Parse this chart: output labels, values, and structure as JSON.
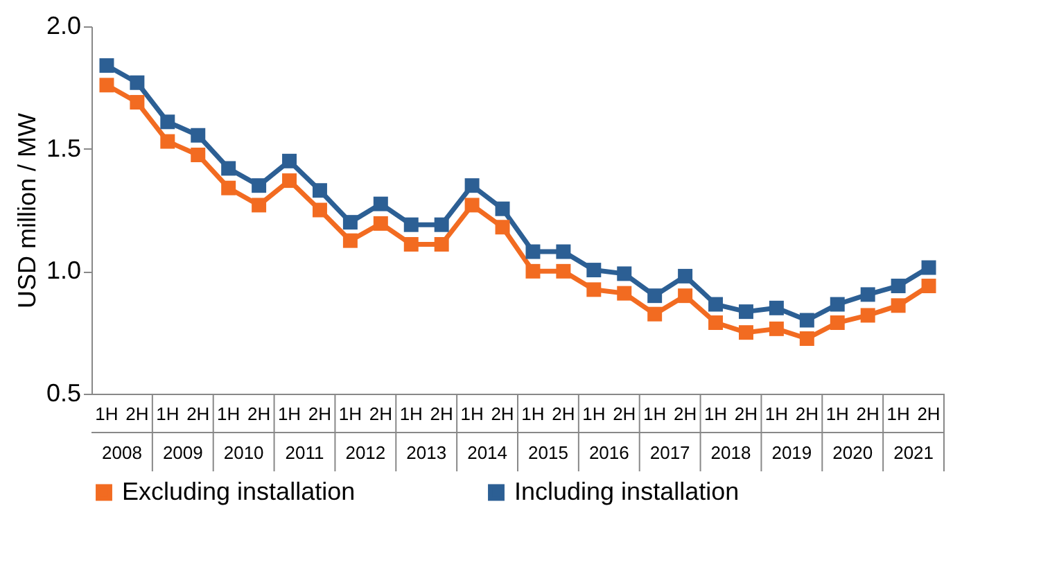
{
  "chart_data": {
    "type": "line",
    "ylabel": "USD million / MW",
    "categories": [
      "1H",
      "2H",
      "1H",
      "2H",
      "1H",
      "2H",
      "1H",
      "2H",
      "1H",
      "2H",
      "1H",
      "2H",
      "1H",
      "2H",
      "1H",
      "2H",
      "1H",
      "2H",
      "1H",
      "2H",
      "1H",
      "2H",
      "1H",
      "2H",
      "1H",
      "2H",
      "1H",
      "2H"
    ],
    "annotations": [
      "2008",
      "2009",
      "2010",
      "2011",
      "2012",
      "2013",
      "2014",
      "2015",
      "2016",
      "2017",
      "2018",
      "2019",
      "2020",
      "2021"
    ],
    "series": [
      {
        "name": "Excluding installation",
        "color": "#f26b21",
        "values": [
          1.76,
          1.69,
          1.53,
          1.475,
          1.34,
          1.27,
          1.37,
          1.25,
          1.125,
          1.195,
          1.11,
          1.11,
          1.27,
          1.18,
          1.0,
          1.0,
          0.925,
          0.91,
          0.825,
          0.9,
          0.79,
          0.75,
          0.765,
          0.725,
          0.79,
          0.82,
          0.86,
          0.94
        ]
      },
      {
        "name": "Including installation",
        "color": "#2c5f94",
        "values": [
          1.84,
          1.77,
          1.61,
          1.555,
          1.42,
          1.35,
          1.45,
          1.33,
          1.2,
          1.275,
          1.19,
          1.19,
          1.35,
          1.255,
          1.08,
          1.08,
          1.005,
          0.99,
          0.9,
          0.98,
          0.865,
          0.835,
          0.85,
          0.8,
          0.865,
          0.905,
          0.94,
          1.015
        ]
      }
    ],
    "ylim": [
      0.5,
      2.0
    ],
    "yticks": [
      {
        "value": 0.5,
        "label": "0.5"
      },
      {
        "value": 1.0,
        "label": "1.0"
      },
      {
        "value": 1.5,
        "label": "1.5"
      },
      {
        "value": 2.0,
        "label": "2.0"
      }
    ],
    "grid": false,
    "legend": "bottom",
    "marker": "square",
    "line_style": "solid"
  }
}
